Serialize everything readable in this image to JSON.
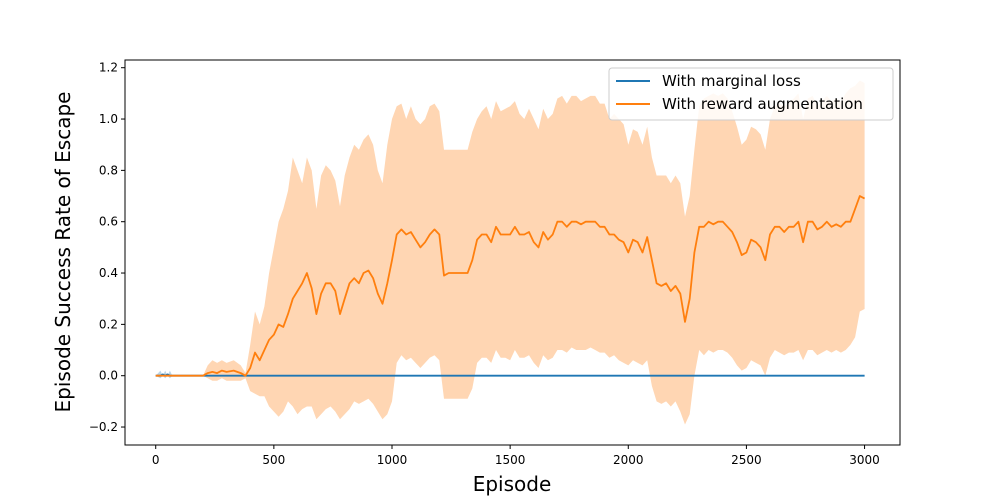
{
  "chart_data": {
    "type": "line",
    "xlabel": "Episode",
    "ylabel": "Episode Success Rate of Escape",
    "xlim": [
      -130,
      3150
    ],
    "ylim": [
      -0.27,
      1.23
    ],
    "xticks": [
      0,
      500,
      1000,
      1500,
      2000,
      2500,
      3000
    ],
    "xtick_labels": [
      "0",
      "500",
      "1000",
      "1500",
      "2000",
      "2500",
      "3000"
    ],
    "yticks": [
      -0.2,
      0.0,
      0.2,
      0.4,
      0.6,
      0.8,
      1.0,
      1.2
    ],
    "ytick_labels": [
      "−0.2",
      "0.0",
      "0.2",
      "0.4",
      "0.6",
      "0.8",
      "1.0",
      "1.2"
    ],
    "grid": false,
    "legend_position": "top-right",
    "series": [
      {
        "name": "With marginal loss",
        "color": "#1f77b4",
        "x": [
          0,
          20,
          30,
          40,
          50,
          60,
          70,
          3000
        ],
        "y": [
          0,
          0,
          0.005,
          0,
          0.005,
          0,
          0,
          0
        ],
        "upper": [
          0,
          0.02,
          0,
          0.02,
          0,
          0.02,
          0,
          0
        ],
        "lower": [
          0,
          -0.01,
          0,
          -0.01,
          0,
          -0.01,
          0,
          0
        ]
      },
      {
        "name": "With reward augmentation",
        "color": "#ff7f0e",
        "band_color": "#ffd6b3",
        "x": [
          0,
          200,
          220,
          240,
          260,
          280,
          300,
          330,
          360,
          380,
          400,
          420,
          440,
          460,
          480,
          500,
          520,
          540,
          560,
          580,
          600,
          620,
          640,
          660,
          680,
          700,
          720,
          740,
          760,
          780,
          800,
          820,
          840,
          860,
          880,
          900,
          920,
          940,
          960,
          980,
          1000,
          1020,
          1040,
          1060,
          1080,
          1100,
          1120,
          1140,
          1160,
          1180,
          1200,
          1220,
          1240,
          1260,
          1280,
          1300,
          1320,
          1340,
          1360,
          1380,
          1400,
          1420,
          1440,
          1460,
          1480,
          1500,
          1520,
          1540,
          1560,
          1580,
          1600,
          1620,
          1640,
          1660,
          1680,
          1700,
          1720,
          1740,
          1760,
          1780,
          1800,
          1820,
          1840,
          1860,
          1880,
          1900,
          1920,
          1940,
          1960,
          1980,
          2000,
          2020,
          2040,
          2060,
          2080,
          2100,
          2120,
          2140,
          2160,
          2180,
          2200,
          2220,
          2240,
          2260,
          2280,
          2300,
          2320,
          2340,
          2360,
          2380,
          2400,
          2420,
          2440,
          2460,
          2480,
          2500,
          2520,
          2540,
          2560,
          2580,
          2600,
          2620,
          2640,
          2660,
          2680,
          2700,
          2720,
          2740,
          2760,
          2780,
          2800,
          2820,
          2840,
          2860,
          2880,
          2900,
          2920,
          2940,
          2960,
          2980,
          3000
        ],
        "y": [
          0,
          0,
          0.01,
          0.015,
          0.01,
          0.02,
          0.015,
          0.02,
          0.01,
          0.0,
          0.03,
          0.09,
          0.06,
          0.1,
          0.14,
          0.16,
          0.2,
          0.19,
          0.24,
          0.3,
          0.33,
          0.36,
          0.4,
          0.34,
          0.24,
          0.32,
          0.36,
          0.36,
          0.33,
          0.24,
          0.3,
          0.36,
          0.38,
          0.36,
          0.4,
          0.41,
          0.38,
          0.32,
          0.28,
          0.36,
          0.45,
          0.55,
          0.57,
          0.55,
          0.56,
          0.53,
          0.5,
          0.52,
          0.55,
          0.57,
          0.55,
          0.39,
          0.4,
          0.4,
          0.4,
          0.4,
          0.4,
          0.45,
          0.53,
          0.55,
          0.55,
          0.52,
          0.58,
          0.55,
          0.55,
          0.55,
          0.58,
          0.55,
          0.55,
          0.56,
          0.52,
          0.5,
          0.56,
          0.53,
          0.55,
          0.6,
          0.6,
          0.58,
          0.6,
          0.6,
          0.59,
          0.6,
          0.6,
          0.6,
          0.58,
          0.58,
          0.55,
          0.55,
          0.53,
          0.52,
          0.48,
          0.53,
          0.52,
          0.48,
          0.54,
          0.45,
          0.36,
          0.35,
          0.36,
          0.33,
          0.35,
          0.32,
          0.21,
          0.3,
          0.48,
          0.58,
          0.58,
          0.6,
          0.59,
          0.6,
          0.6,
          0.58,
          0.56,
          0.52,
          0.47,
          0.48,
          0.53,
          0.52,
          0.5,
          0.45,
          0.55,
          0.58,
          0.58,
          0.56,
          0.58,
          0.58,
          0.6,
          0.52,
          0.6,
          0.6,
          0.57,
          0.58,
          0.6,
          0.58,
          0.59,
          0.58,
          0.6,
          0.6,
          0.65,
          0.7,
          0.69
        ],
        "upper": [
          0,
          0,
          0.04,
          0.06,
          0.05,
          0.06,
          0.05,
          0.06,
          0.04,
          0.01,
          0.12,
          0.25,
          0.2,
          0.27,
          0.4,
          0.5,
          0.6,
          0.65,
          0.72,
          0.85,
          0.8,
          0.75,
          0.85,
          0.8,
          0.65,
          0.78,
          0.82,
          0.8,
          0.76,
          0.66,
          0.78,
          0.85,
          0.9,
          0.88,
          0.92,
          0.94,
          0.9,
          0.8,
          0.75,
          0.9,
          1.0,
          1.05,
          1.06,
          1.0,
          1.05,
          1.0,
          0.98,
          1.0,
          1.05,
          1.06,
          1.03,
          0.88,
          0.88,
          0.88,
          0.88,
          0.88,
          0.88,
          0.95,
          1.0,
          1.03,
          1.05,
          1.0,
          1.07,
          1.03,
          1.04,
          1.05,
          1.07,
          1.02,
          1.0,
          1.04,
          1.0,
          0.96,
          1.04,
          1.0,
          1.02,
          1.08,
          1.09,
          1.06,
          1.09,
          1.09,
          1.07,
          1.08,
          1.09,
          1.09,
          1.06,
          1.06,
          1.0,
          1.02,
          1.0,
          0.98,
          0.9,
          0.96,
          0.95,
          0.9,
          0.97,
          0.85,
          0.78,
          0.78,
          0.78,
          0.75,
          0.78,
          0.75,
          0.62,
          0.7,
          0.88,
          1.05,
          1.08,
          1.09,
          1.1,
          1.09,
          1.1,
          1.08,
          1.03,
          0.97,
          0.9,
          0.92,
          0.97,
          0.96,
          0.94,
          0.88,
          1.0,
          1.05,
          1.06,
          1.05,
          1.06,
          1.08,
          1.1,
          1.0,
          1.08,
          1.09,
          1.05,
          1.07,
          1.09,
          1.07,
          1.08,
          1.07,
          1.1,
          1.12,
          1.13,
          1.15,
          1.14
        ],
        "lower": [
          0,
          0,
          -0.01,
          -0.02,
          -0.02,
          -0.01,
          -0.02,
          -0.02,
          -0.02,
          -0.01,
          -0.06,
          -0.07,
          -0.08,
          -0.08,
          -0.12,
          -0.14,
          -0.16,
          -0.14,
          -0.1,
          -0.12,
          -0.15,
          -0.13,
          -0.12,
          -0.12,
          -0.17,
          -0.15,
          -0.13,
          -0.12,
          -0.14,
          -0.17,
          -0.15,
          -0.13,
          -0.1,
          -0.11,
          -0.1,
          -0.09,
          -0.11,
          -0.14,
          -0.17,
          -0.15,
          -0.1,
          0.05,
          0.08,
          0.06,
          0.07,
          0.05,
          0.03,
          0.05,
          0.07,
          0.08,
          0.06,
          -0.09,
          -0.09,
          -0.09,
          -0.09,
          -0.09,
          -0.09,
          -0.05,
          0.05,
          0.07,
          0.07,
          0.05,
          0.1,
          0.07,
          0.07,
          0.06,
          0.1,
          0.07,
          0.07,
          0.08,
          0.05,
          0.03,
          0.08,
          0.06,
          0.07,
          0.1,
          0.1,
          0.09,
          0.11,
          0.1,
          0.1,
          0.1,
          0.11,
          0.1,
          0.09,
          0.09,
          0.07,
          0.08,
          0.06,
          0.05,
          0.04,
          0.06,
          0.05,
          0.04,
          0.06,
          -0.04,
          -0.1,
          -0.11,
          -0.1,
          -0.12,
          -0.1,
          -0.14,
          -0.19,
          -0.15,
          0.0,
          0.1,
          0.08,
          0.1,
          0.09,
          0.1,
          0.1,
          0.09,
          0.07,
          0.04,
          0.02,
          0.03,
          0.06,
          0.05,
          0.04,
          0.0,
          0.07,
          0.1,
          0.09,
          0.08,
          0.09,
          0.09,
          0.1,
          0.06,
          0.1,
          0.1,
          0.08,
          0.09,
          0.1,
          0.09,
          0.1,
          0.09,
          0.1,
          0.12,
          0.15,
          0.25,
          0.26
        ]
      }
    ]
  }
}
